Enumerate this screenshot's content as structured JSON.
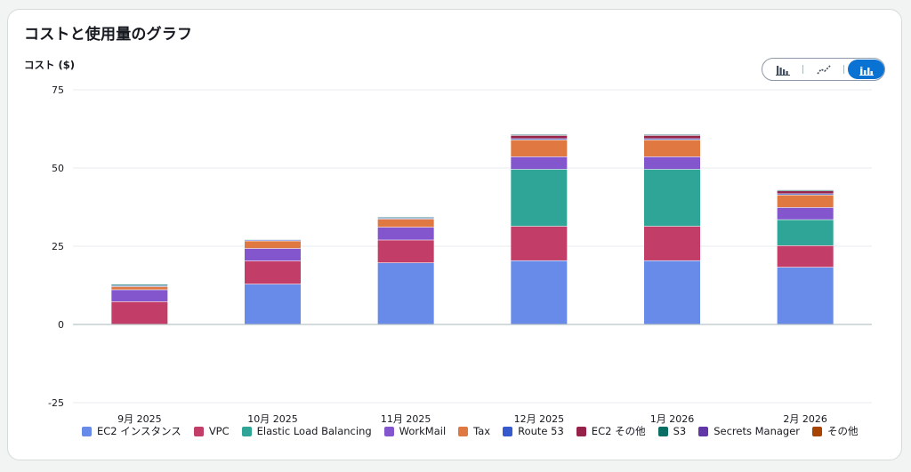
{
  "page": {
    "title": "コストと使用量のグラフ"
  },
  "toggle": {
    "options": [
      {
        "icon": "bar-chart-icon",
        "active": false
      },
      {
        "icon": "line-chart-icon",
        "active": false
      },
      {
        "icon": "stacked-bar-chart-icon",
        "active": true
      }
    ]
  },
  "chart_data": {
    "type": "bar",
    "stacked": true,
    "ylabel": "コスト ($)",
    "ylim": [
      -25,
      75
    ],
    "yticks": [
      75,
      50,
      25,
      0,
      -25
    ],
    "grid": true,
    "legend_position": "bottom",
    "categories": [
      "9月 2025",
      "10月 2025",
      "11月 2025",
      "12月 2025",
      "1月 2026",
      "2月 2026"
    ],
    "series": [
      {
        "name": "EC2 インスタンス",
        "color": "#688ae8",
        "values": [
          0,
          12.8,
          19.6,
          20.3,
          20.3,
          18.2
        ]
      },
      {
        "name": "VPC",
        "color": "#c33d69",
        "values": [
          7.2,
          7.4,
          7.3,
          11.0,
          11.0,
          6.9
        ]
      },
      {
        "name": "Elastic Load Balancing",
        "color": "#2ea597",
        "values": [
          0,
          0,
          0,
          18.2,
          18.2,
          8.3
        ]
      },
      {
        "name": "WorkMail",
        "color": "#8456ce",
        "values": [
          3.8,
          4.0,
          4.1,
          4.0,
          4.0,
          3.9
        ]
      },
      {
        "name": "Tax",
        "color": "#e07941",
        "values": [
          1.0,
          2.4,
          2.6,
          5.4,
          5.4,
          4.0
        ]
      },
      {
        "name": "Route 53",
        "color": "#3759ce",
        "values": [
          0.3,
          0.3,
          0.3,
          0.4,
          0.4,
          0.4
        ]
      },
      {
        "name": "EC2 その他",
        "color": "#962249",
        "values": [
          0,
          0,
          0,
          1.0,
          1.0,
          0.9
        ]
      },
      {
        "name": "S3",
        "color": "#096f64",
        "values": [
          0.4,
          0.2,
          0.3,
          0.3,
          0.3,
          0.3
        ]
      },
      {
        "name": "Secrets Manager",
        "color": "#6237a7",
        "values": [
          0,
          0,
          0,
          0.2,
          0.2,
          0.2
        ]
      },
      {
        "name": "その他",
        "color": "#a84401",
        "values": [
          0,
          0,
          0,
          0,
          0,
          0
        ]
      }
    ]
  }
}
